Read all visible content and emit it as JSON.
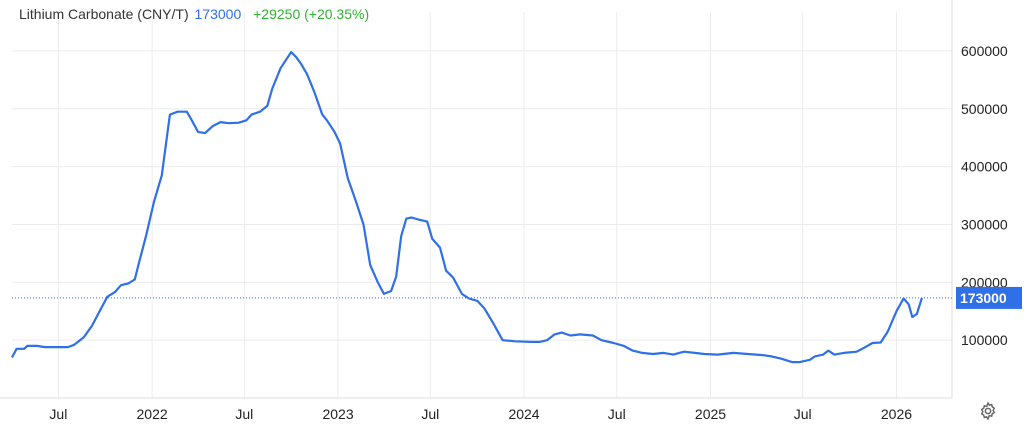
{
  "header": {
    "name": "Lithium Carbonate (CNY/T)",
    "price": "173000",
    "change": "+29250 (+20.35%)"
  },
  "colors": {
    "line": "#2f6fe8",
    "change": "#2db52d",
    "grid": "#ececec",
    "badge": "#2f6fe8"
  },
  "icons": {
    "settings": "gear-icon"
  },
  "chart_data": {
    "type": "line",
    "title": "Lithium Carbonate (CNY/T)",
    "xlabel": "",
    "ylabel": "",
    "grid": true,
    "legend": "none",
    "ylim": [
      0,
      650000
    ],
    "xlim": [
      "2021-04-01",
      "2026-04-20"
    ],
    "y_ticks": [
      100000,
      200000,
      300000,
      400000,
      500000,
      600000
    ],
    "y_tick_labels": [
      "100000",
      "200000",
      "300000",
      "400000",
      "500000",
      "600000"
    ],
    "x_ticks": [
      {
        "date": "2021-07-01",
        "label": "Jul"
      },
      {
        "date": "2022-01-01",
        "label": "2022"
      },
      {
        "date": "2022-07-01",
        "label": "Jul"
      },
      {
        "date": "2023-01-01",
        "label": "2023"
      },
      {
        "date": "2023-07-01",
        "label": "Jul"
      },
      {
        "date": "2024-01-01",
        "label": "2024"
      },
      {
        "date": "2024-07-01",
        "label": "Jul"
      },
      {
        "date": "2025-01-01",
        "label": "2025"
      },
      {
        "date": "2025-07-01",
        "label": "Jul"
      },
      {
        "date": "2026-01-01",
        "label": "2026"
      }
    ],
    "last_value": 173000,
    "last_value_label": "173000",
    "series": [
      {
        "name": "",
        "values": [
          [
            "2021-04-01",
            70000
          ],
          [
            "2021-04-10",
            85000
          ],
          [
            "2021-04-25",
            85000
          ],
          [
            "2021-05-01",
            90000
          ],
          [
            "2021-05-20",
            90000
          ],
          [
            "2021-06-05",
            88000
          ],
          [
            "2021-06-30",
            88000
          ],
          [
            "2021-07-20",
            88000
          ],
          [
            "2021-08-01",
            92000
          ],
          [
            "2021-08-20",
            105000
          ],
          [
            "2021-09-05",
            125000
          ],
          [
            "2021-09-20",
            150000
          ],
          [
            "2021-10-05",
            175000
          ],
          [
            "2021-10-20",
            183000
          ],
          [
            "2021-11-01",
            195000
          ],
          [
            "2021-11-15",
            198000
          ],
          [
            "2021-11-28",
            205000
          ],
          [
            "2021-12-05",
            230000
          ],
          [
            "2021-12-20",
            280000
          ],
          [
            "2022-01-05",
            340000
          ],
          [
            "2022-01-20",
            385000
          ],
          [
            "2022-02-05",
            490000
          ],
          [
            "2022-02-20",
            495000
          ],
          [
            "2022-03-10",
            495000
          ],
          [
            "2022-03-20",
            480000
          ],
          [
            "2022-04-01",
            460000
          ],
          [
            "2022-04-15",
            458000
          ],
          [
            "2022-04-30",
            470000
          ],
          [
            "2022-05-15",
            477000
          ],
          [
            "2022-06-01",
            475000
          ],
          [
            "2022-06-20",
            476000
          ],
          [
            "2022-07-05",
            480000
          ],
          [
            "2022-07-15",
            490000
          ],
          [
            "2022-08-01",
            495000
          ],
          [
            "2022-08-15",
            505000
          ],
          [
            "2022-08-25",
            535000
          ],
          [
            "2022-09-10",
            570000
          ],
          [
            "2022-09-25",
            590000
          ],
          [
            "2022-10-01",
            598000
          ],
          [
            "2022-10-10",
            590000
          ],
          [
            "2022-10-20",
            578000
          ],
          [
            "2022-11-01",
            560000
          ],
          [
            "2022-11-15",
            530000
          ],
          [
            "2022-12-01",
            490000
          ],
          [
            "2022-12-10",
            480000
          ],
          [
            "2022-12-25",
            460000
          ],
          [
            "2023-01-05",
            440000
          ],
          [
            "2023-01-20",
            380000
          ],
          [
            "2023-02-05",
            340000
          ],
          [
            "2023-02-20",
            300000
          ],
          [
            "2023-03-05",
            230000
          ],
          [
            "2023-03-20",
            200000
          ],
          [
            "2023-04-01",
            180000
          ],
          [
            "2023-04-15",
            185000
          ],
          [
            "2023-04-25",
            210000
          ],
          [
            "2023-05-05",
            280000
          ],
          [
            "2023-05-15",
            310000
          ],
          [
            "2023-05-25",
            312000
          ],
          [
            "2023-06-10",
            308000
          ],
          [
            "2023-06-25",
            305000
          ],
          [
            "2023-07-05",
            275000
          ],
          [
            "2023-07-20",
            260000
          ],
          [
            "2023-08-01",
            220000
          ],
          [
            "2023-08-15",
            208000
          ],
          [
            "2023-09-01",
            180000
          ],
          [
            "2023-09-15",
            172000
          ],
          [
            "2023-10-01",
            168000
          ],
          [
            "2023-10-15",
            155000
          ],
          [
            "2023-11-01",
            130000
          ],
          [
            "2023-11-20",
            100000
          ],
          [
            "2023-12-15",
            98000
          ],
          [
            "2024-01-15",
            97000
          ],
          [
            "2024-02-01",
            97000
          ],
          [
            "2024-02-15",
            100000
          ],
          [
            "2024-03-01",
            110000
          ],
          [
            "2024-03-15",
            113000
          ],
          [
            "2024-04-01",
            108000
          ],
          [
            "2024-04-20",
            110000
          ],
          [
            "2024-05-15",
            108000
          ],
          [
            "2024-06-01",
            100000
          ],
          [
            "2024-06-25",
            95000
          ],
          [
            "2024-07-15",
            90000
          ],
          [
            "2024-08-01",
            82000
          ],
          [
            "2024-08-20",
            78000
          ],
          [
            "2024-09-10",
            76000
          ],
          [
            "2024-10-01",
            78000
          ],
          [
            "2024-10-20",
            75000
          ],
          [
            "2024-11-10",
            80000
          ],
          [
            "2024-12-01",
            78000
          ],
          [
            "2024-12-20",
            76000
          ],
          [
            "2025-01-15",
            75000
          ],
          [
            "2025-02-15",
            78000
          ],
          [
            "2025-03-15",
            76000
          ],
          [
            "2025-04-15",
            74000
          ],
          [
            "2025-05-01",
            72000
          ],
          [
            "2025-05-20",
            68000
          ],
          [
            "2025-06-10",
            62000
          ],
          [
            "2025-06-25",
            62000
          ],
          [
            "2025-07-15",
            66000
          ],
          [
            "2025-07-25",
            72000
          ],
          [
            "2025-08-10",
            75000
          ],
          [
            "2025-08-20",
            82000
          ],
          [
            "2025-09-01",
            75000
          ],
          [
            "2025-09-20",
            78000
          ],
          [
            "2025-10-15",
            80000
          ],
          [
            "2025-11-01",
            88000
          ],
          [
            "2025-11-15",
            95000
          ],
          [
            "2025-12-01",
            96000
          ],
          [
            "2025-12-15",
            115000
          ],
          [
            "2026-01-01",
            150000
          ],
          [
            "2026-01-15",
            172000
          ],
          [
            "2026-01-25",
            162000
          ],
          [
            "2026-02-01",
            140000
          ],
          [
            "2026-02-10",
            145000
          ],
          [
            "2026-02-20",
            173000
          ]
        ]
      }
    ]
  }
}
